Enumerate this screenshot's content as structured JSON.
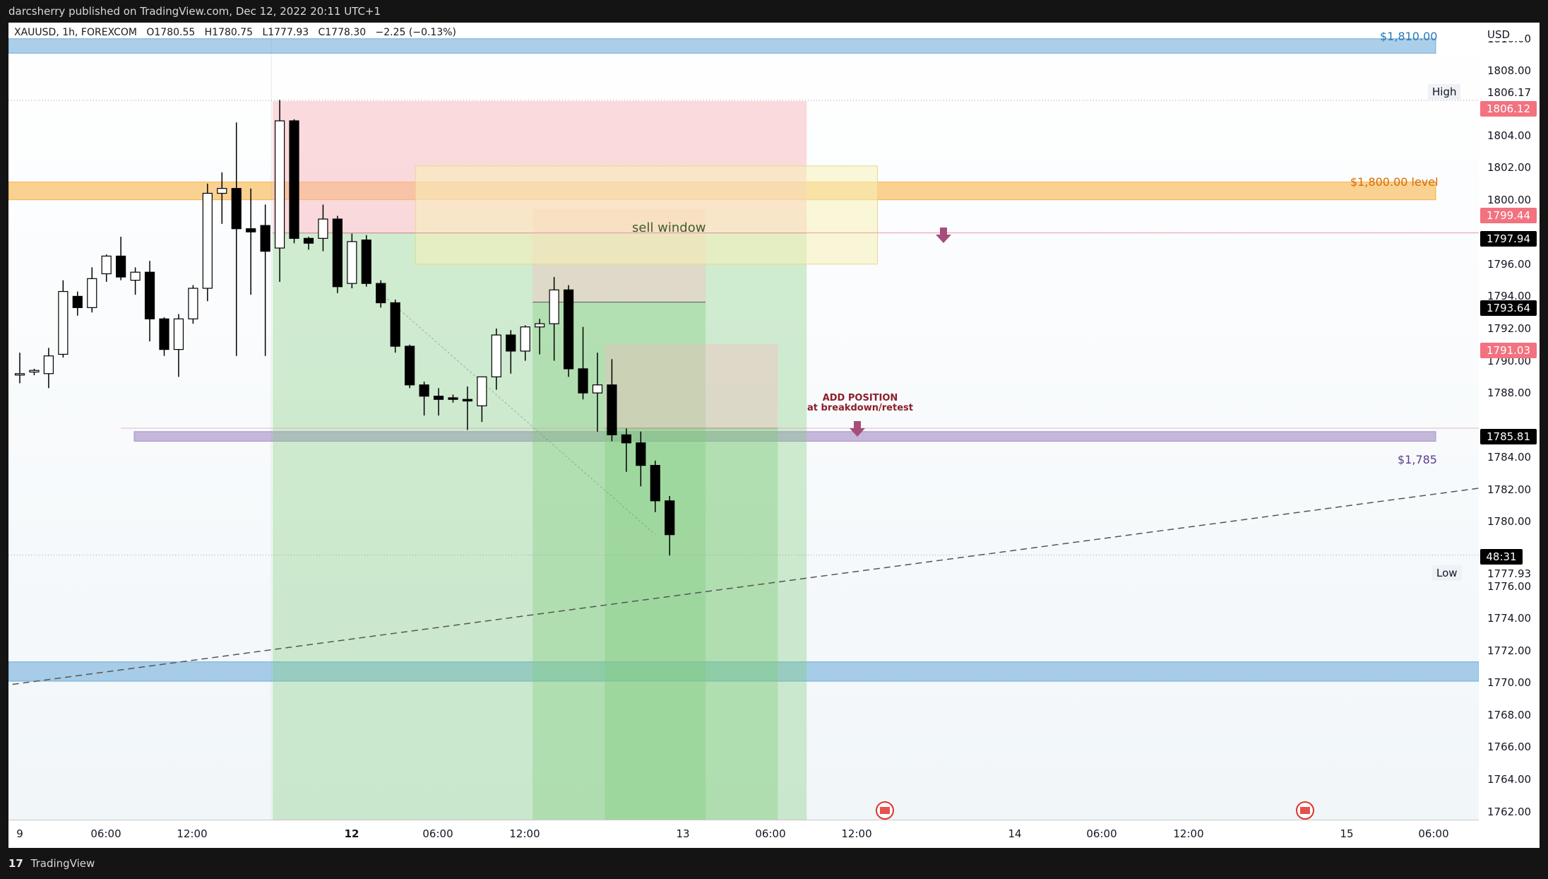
{
  "header": {
    "publisher": "darcsherry published on TradingView.com, Dec 12, 2022 20:11 UTC+1"
  },
  "legend": {
    "symbol": "XAUUSD, 1h, FOREXCOM",
    "open": "O1780.55",
    "high": "H1780.75",
    "low": "L1777.93",
    "close": "C1778.30",
    "change": "−2.25 (−0.13%)"
  },
  "axis": {
    "currency": "USD",
    "price_ticks": [
      "1810.00",
      "1808.00",
      "1804.00",
      "1802.00",
      "1800.00",
      "1796.00",
      "1794.00",
      "1792.00",
      "1790.00",
      "1788.00",
      "1784.00",
      "1782.00",
      "1780.00",
      "1776.00",
      "1774.00",
      "1772.00",
      "1770.00",
      "1768.00",
      "1766.00",
      "1764.00",
      "1762.00"
    ],
    "time_ticks": [
      {
        "label": "9",
        "major": false
      },
      {
        "label": "06:00",
        "major": false
      },
      {
        "label": "12:00",
        "major": false
      },
      {
        "label": "12",
        "major": true
      },
      {
        "label": "06:00",
        "major": false
      },
      {
        "label": "12:00",
        "major": false
      },
      {
        "label": "13",
        "major": false
      },
      {
        "label": "06:00",
        "major": false
      },
      {
        "label": "12:00",
        "major": false
      },
      {
        "label": "14",
        "major": false
      },
      {
        "label": "06:00",
        "major": false
      },
      {
        "label": "12:00",
        "major": false
      },
      {
        "label": "15",
        "major": false
      },
      {
        "label": "06:00",
        "major": false
      }
    ]
  },
  "price_badges": {
    "high_label": "High",
    "high_value": "1806.17",
    "stop_value": "1806.12",
    "level_a": "1799.44",
    "last_line": "1797.94",
    "level_b": "1793.64",
    "level_c": "1791.03",
    "level_d": "1785.81",
    "countdown": "48:31",
    "low_label": "Low",
    "low_value": "1777.93"
  },
  "annotations": {
    "top_zone": "$1,810.00",
    "level_1800": "$1,800.00 level",
    "sell_window": "sell window",
    "add_position_title": "ADD POSITION",
    "add_position_sub": "at breakdown/retest",
    "level_1785": "$1,785"
  },
  "footer": {
    "brand": "TradingView",
    "logo": "17"
  },
  "colors": {
    "up": "#ffffff",
    "down": "#000000",
    "stop_zone": "#f8b6bb",
    "profit_zone": "#7fcc7b",
    "orange_zone": "#f6a623",
    "blue_zone": "#5a9fd4",
    "purple_zone": "#9b7fc0",
    "arrow": "#a64d79",
    "sell_box": "#f8f0b8"
  },
  "chart_data": {
    "type": "candlestick",
    "symbol": "XAUUSD",
    "timeframe": "1h",
    "ylim": [
      1761.5,
      1811
    ],
    "y_axis_label": "USD",
    "candles": [
      {
        "o": 1789.2,
        "h": 1790.5,
        "l": 1788.6,
        "c": 1789.2
      },
      {
        "o": 1789.3,
        "h": 1789.5,
        "l": 1789.1,
        "c": 1789.4
      },
      {
        "o": 1789.2,
        "h": 1790.8,
        "l": 1788.3,
        "c": 1790.3
      },
      {
        "o": 1790.4,
        "h": 1795.0,
        "l": 1790.2,
        "c": 1794.3
      },
      {
        "o": 1794.0,
        "h": 1794.3,
        "l": 1792.8,
        "c": 1793.3
      },
      {
        "o": 1793.3,
        "h": 1795.8,
        "l": 1793.0,
        "c": 1795.1
      },
      {
        "o": 1795.4,
        "h": 1796.6,
        "l": 1794.9,
        "c": 1796.5
      },
      {
        "o": 1796.5,
        "h": 1797.7,
        "l": 1795.0,
        "c": 1795.2
      },
      {
        "o": 1795.0,
        "h": 1795.8,
        "l": 1794.1,
        "c": 1795.5
      },
      {
        "o": 1795.5,
        "h": 1796.2,
        "l": 1791.2,
        "c": 1792.6
      },
      {
        "o": 1792.6,
        "h": 1792.7,
        "l": 1790.3,
        "c": 1790.7
      },
      {
        "o": 1790.7,
        "h": 1792.9,
        "l": 1789.0,
        "c": 1792.6
      },
      {
        "o": 1792.6,
        "h": 1794.7,
        "l": 1792.3,
        "c": 1794.5
      },
      {
        "o": 1794.5,
        "h": 1801.0,
        "l": 1793.7,
        "c": 1800.4
      },
      {
        "o": 1800.4,
        "h": 1801.7,
        "l": 1798.5,
        "c": 1800.7
      },
      {
        "o": 1800.7,
        "h": 1804.8,
        "l": 1790.3,
        "c": 1798.2
      },
      {
        "o": 1798.2,
        "h": 1800.7,
        "l": 1794.1,
        "c": 1798.0
      },
      {
        "o": 1798.4,
        "h": 1799.7,
        "l": 1790.3,
        "c": 1796.8
      },
      {
        "o": 1797.0,
        "h": 1806.2,
        "l": 1794.9,
        "c": 1804.9
      },
      {
        "o": 1804.9,
        "h": 1805.0,
        "l": 1797.3,
        "c": 1797.6
      },
      {
        "o": 1797.6,
        "h": 1797.7,
        "l": 1796.9,
        "c": 1797.3
      },
      {
        "o": 1797.6,
        "h": 1799.7,
        "l": 1796.8,
        "c": 1798.8
      },
      {
        "o": 1798.8,
        "h": 1799.0,
        "l": 1794.2,
        "c": 1794.6
      },
      {
        "o": 1794.8,
        "h": 1797.9,
        "l": 1794.5,
        "c": 1797.4
      },
      {
        "o": 1797.5,
        "h": 1797.8,
        "l": 1794.6,
        "c": 1794.8
      },
      {
        "o": 1794.8,
        "h": 1795.0,
        "l": 1793.3,
        "c": 1793.6
      },
      {
        "o": 1793.6,
        "h": 1793.8,
        "l": 1790.5,
        "c": 1790.9
      },
      {
        "o": 1790.9,
        "h": 1791.0,
        "l": 1788.3,
        "c": 1788.5
      },
      {
        "o": 1788.5,
        "h": 1788.7,
        "l": 1786.6,
        "c": 1787.8
      },
      {
        "o": 1787.8,
        "h": 1788.3,
        "l": 1786.6,
        "c": 1787.6
      },
      {
        "o": 1787.7,
        "h": 1787.9,
        "l": 1787.4,
        "c": 1787.6
      },
      {
        "o": 1787.6,
        "h": 1788.4,
        "l": 1785.7,
        "c": 1787.5
      },
      {
        "o": 1787.2,
        "h": 1789.0,
        "l": 1786.2,
        "c": 1789.0
      },
      {
        "o": 1789.0,
        "h": 1792.0,
        "l": 1788.2,
        "c": 1791.6
      },
      {
        "o": 1791.6,
        "h": 1791.9,
        "l": 1789.2,
        "c": 1790.6
      },
      {
        "o": 1790.6,
        "h": 1792.2,
        "l": 1790.0,
        "c": 1792.1
      },
      {
        "o": 1792.1,
        "h": 1792.6,
        "l": 1790.4,
        "c": 1792.3
      },
      {
        "o": 1792.3,
        "h": 1795.2,
        "l": 1790.0,
        "c": 1794.4
      },
      {
        "o": 1794.4,
        "h": 1794.7,
        "l": 1789.0,
        "c": 1789.5
      },
      {
        "o": 1789.5,
        "h": 1792.1,
        "l": 1787.6,
        "c": 1788.0
      },
      {
        "o": 1788.0,
        "h": 1790.5,
        "l": 1785.6,
        "c": 1788.5
      },
      {
        "o": 1788.5,
        "h": 1790.1,
        "l": 1785.0,
        "c": 1785.4
      },
      {
        "o": 1785.4,
        "h": 1785.8,
        "l": 1783.1,
        "c": 1784.9
      },
      {
        "o": 1784.9,
        "h": 1785.6,
        "l": 1782.2,
        "c": 1783.5
      },
      {
        "o": 1783.5,
        "h": 1783.8,
        "l": 1780.6,
        "c": 1781.3
      },
      {
        "o": 1781.3,
        "h": 1781.6,
        "l": 1777.9,
        "c": 1779.2
      }
    ],
    "levels": [
      {
        "name": "$1,810.00",
        "from": 1809.1,
        "to": 1810.0
      },
      {
        "name": "$1,800.00 level",
        "from": 1800.0,
        "to": 1801.1
      },
      {
        "name": "$1,785",
        "from": 1785.0,
        "to": 1785.6
      },
      {
        "name": "",
        "from": 1770.1,
        "to": 1771.3
      }
    ],
    "positions": [
      {
        "entry": 1797.94,
        "stop": 1806.12,
        "target": 1761.5,
        "col_from": 18,
        "col_to": 54
      },
      {
        "entry": 1793.64,
        "stop": 1799.44,
        "target": 1761.5,
        "col_from": 36,
        "col_to": 47
      },
      {
        "entry": 1785.81,
        "stop": 1791.03,
        "target": 1761.5,
        "col_from": 41,
        "col_to": 52
      }
    ],
    "sell_window": {
      "from": 1796.0,
      "to": 1802.1,
      "col_from": 28,
      "col_to": 59
    },
    "trendline": {
      "from_col": -0.5,
      "from_price": 1769.9,
      "to_col": 104.5,
      "to_price": 1782.5
    }
  }
}
